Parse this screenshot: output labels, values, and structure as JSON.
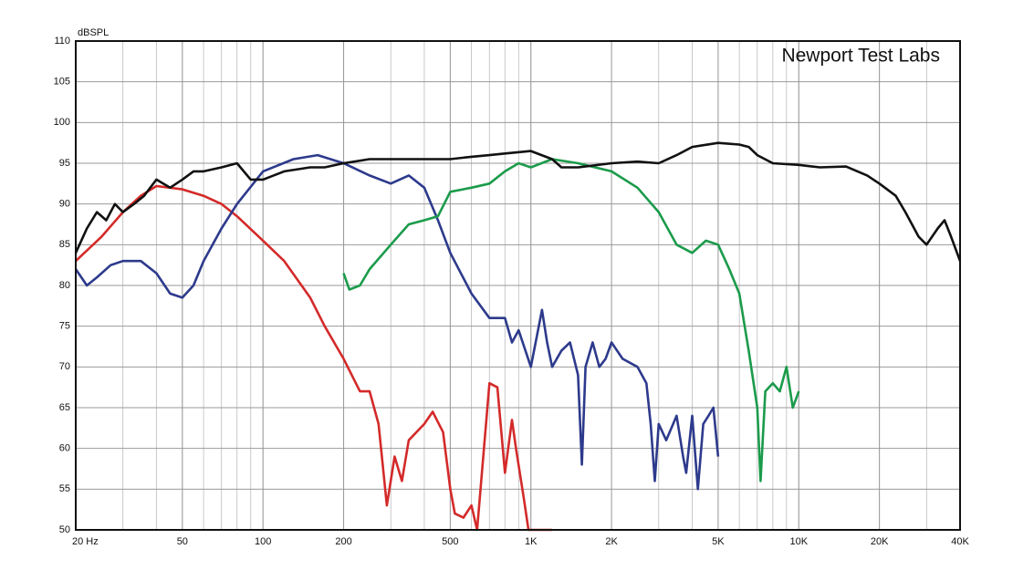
{
  "chart_data": {
    "type": "line",
    "annotation": "Newport Test Labs",
    "ylabel": "dBSPL",
    "xscale": "log",
    "grid": true,
    "minor_grid": true,
    "xlim": [
      20,
      40000
    ],
    "ylim": [
      50,
      110
    ],
    "xticks": [
      {
        "value": 20,
        "label": "20 Hz"
      },
      50,
      100,
      200,
      500,
      {
        "value": 1000,
        "label": "1K"
      },
      {
        "value": 2000,
        "label": "2K"
      },
      {
        "value": 5000,
        "label": "5K"
      },
      {
        "value": 10000,
        "label": "10K"
      },
      {
        "value": 20000,
        "label": "20K"
      },
      {
        "value": 40000,
        "label": "40K"
      }
    ],
    "yticks": [
      50,
      55,
      60,
      65,
      70,
      75,
      80,
      85,
      90,
      95,
      100,
      105,
      110
    ],
    "series": [
      {
        "color": "#d42a2a",
        "x": [
          20,
          25,
          30,
          35,
          40,
          50,
          60,
          70,
          80,
          100,
          120,
          150,
          170,
          200,
          230,
          250,
          270,
          290,
          310,
          330,
          350,
          400,
          430,
          470,
          500,
          520,
          560,
          600,
          630,
          660,
          700,
          750,
          800,
          850,
          880,
          940,
          980,
          1200
        ],
        "values": [
          83,
          86,
          89,
          91,
          92.2,
          91.8,
          91,
          90,
          88.5,
          85.5,
          83,
          78.5,
          75,
          71,
          67,
          67,
          63,
          53,
          59,
          56,
          61,
          63,
          64.5,
          62,
          55,
          52,
          51.5,
          53,
          50,
          58,
          68,
          67.5,
          57,
          63.5,
          60,
          54,
          50,
          50
        ]
      },
      {
        "color": "#2d3a8c",
        "x": [
          20,
          22,
          24,
          27,
          30,
          35,
          40,
          45,
          50,
          55,
          60,
          70,
          80,
          100,
          130,
          160,
          200,
          250,
          300,
          350,
          400,
          450,
          500,
          600,
          700,
          800,
          850,
          900,
          1000,
          1100,
          1150,
          1200,
          1300,
          1400,
          1500,
          1550,
          1600,
          1700,
          1800,
          1900,
          2000,
          2200,
          2500,
          2700,
          2800,
          2900,
          3000,
          3200,
          3500,
          3700,
          3800,
          4000,
          4200,
          4400,
          4600,
          4800,
          5000
        ],
        "values": [
          82,
          80,
          81,
          82.5,
          83,
          83,
          81.5,
          79,
          78.5,
          80,
          83,
          87,
          90,
          94,
          95.5,
          96,
          95,
          93.5,
          92.5,
          93.5,
          92,
          88,
          84,
          79,
          76,
          76,
          73,
          74.5,
          70,
          77,
          73,
          70,
          72,
          73,
          69,
          58,
          70,
          73,
          70,
          71,
          73,
          71,
          70,
          68,
          63,
          56,
          63,
          61,
          64,
          59,
          57,
          64,
          55,
          63,
          64,
          65,
          59
        ]
      },
      {
        "color": "#1b9b4b",
        "x": [
          200,
          210,
          230,
          250,
          300,
          350,
          400,
          450,
          500,
          600,
          700,
          800,
          900,
          1000,
          1200,
          1500,
          2000,
          2500,
          3000,
          3500,
          4000,
          4500,
          5000,
          5500,
          6000,
          6500,
          7000,
          7200,
          7500,
          8000,
          8500,
          9000,
          9500,
          10000
        ],
        "values": [
          81.5,
          79.5,
          80,
          82,
          85,
          87.5,
          88,
          88.5,
          91.5,
          92,
          92.5,
          94,
          95,
          94.5,
          95.5,
          95,
          94,
          92,
          89,
          85,
          84,
          85.5,
          85,
          82,
          79,
          72,
          65,
          56,
          67,
          68,
          67,
          70,
          65,
          67
        ]
      },
      {
        "color": "#111111",
        "x": [
          20,
          22,
          24,
          26,
          28,
          30,
          33,
          36,
          40,
          45,
          50,
          55,
          60,
          70,
          80,
          90,
          100,
          120,
          150,
          170,
          200,
          250,
          300,
          400,
          500,
          600,
          700,
          800,
          1000,
          1200,
          1300,
          1500,
          2000,
          2500,
          3000,
          3500,
          4000,
          5000,
          6000,
          6500,
          7000,
          8000,
          10000,
          12000,
          15000,
          18000,
          20000,
          23000,
          25000,
          28000,
          30000,
          33000,
          35000,
          37000,
          40000
        ],
        "values": [
          84,
          87,
          89,
          88,
          90,
          89,
          90,
          91,
          93,
          92,
          93,
          94,
          94,
          94.5,
          95,
          93,
          93,
          94,
          94.5,
          94.5,
          95,
          95.5,
          95.5,
          95.5,
          95.5,
          95.8,
          96,
          96.2,
          96.5,
          95.5,
          94.5,
          94.5,
          95,
          95.2,
          95,
          96,
          97,
          97.5,
          97.3,
          97,
          96,
          95,
          94.8,
          94.5,
          94.6,
          93.5,
          92.5,
          91,
          89,
          86,
          85,
          87,
          88,
          86,
          83
        ]
      }
    ]
  }
}
